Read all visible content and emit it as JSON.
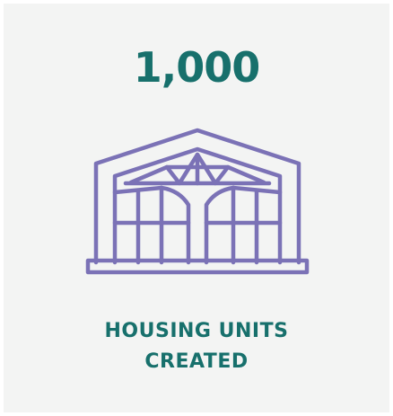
{
  "stat": {
    "value": "1,000",
    "label_lines": [
      "HOUSING UNITS",
      "CREATED"
    ]
  }
}
